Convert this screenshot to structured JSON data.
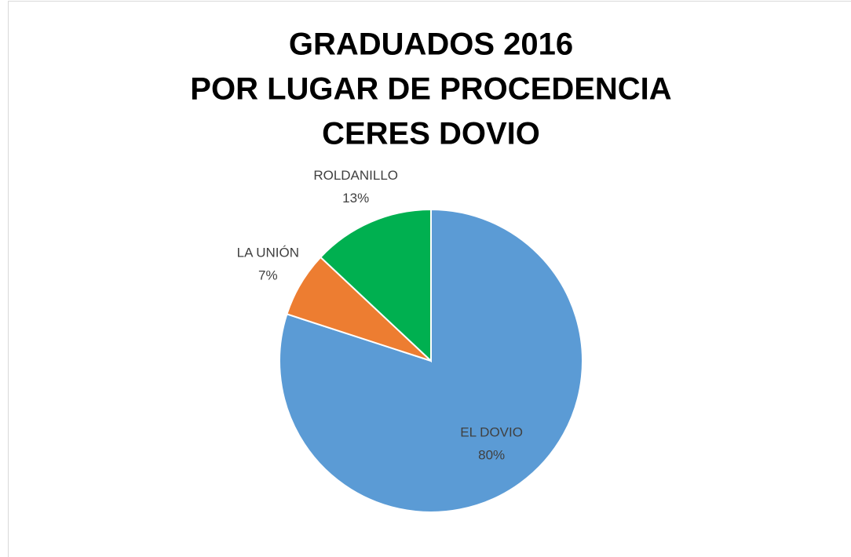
{
  "chart_data": {
    "type": "pie",
    "title": [
      "GRADUADOS 2016",
      "POR LUGAR DE PROCEDENCIA",
      "CERES DOVIO"
    ],
    "categories": [
      "EL DOVIO",
      "LA UNIÓN",
      "ROLDANILLO"
    ],
    "values": [
      80,
      7,
      13
    ],
    "value_labels": [
      "80%",
      "7%",
      "13%"
    ],
    "colors": [
      "#5b9bd5",
      "#ed7d31",
      "#00b050"
    ]
  }
}
